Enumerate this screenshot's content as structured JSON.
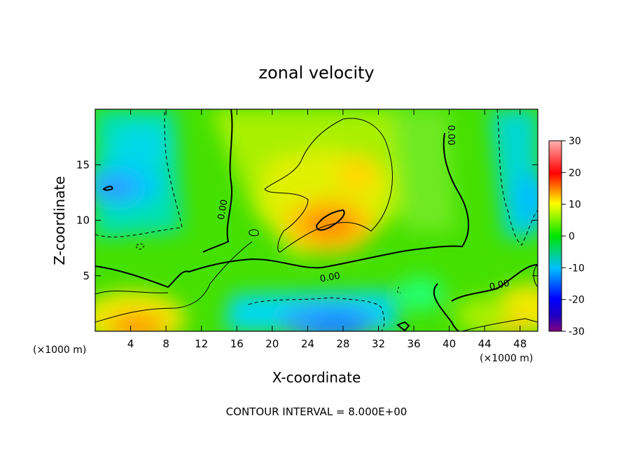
{
  "chart_data": {
    "type": "heatmap",
    "title": "zonal velocity",
    "xlabel": "X-coordinate",
    "ylabel": "Z-coordinate",
    "x_unit_left": "(×1000 m)",
    "x_unit_right": "(×1000 m)",
    "footer": "CONTOUR INTERVAL = 8.000E+00",
    "xlim": [
      0,
      50
    ],
    "ylim": [
      0,
      20
    ],
    "x_ticks": [
      4,
      8,
      12,
      16,
      20,
      24,
      28,
      32,
      36,
      40,
      44,
      48
    ],
    "y_ticks": [
      5,
      10,
      15
    ],
    "colorbar": {
      "range": [
        -30,
        30
      ],
      "ticks": [
        30,
        20,
        10,
        0,
        -10,
        -20,
        -30
      ],
      "colors": [
        "#800080",
        "#0000ff",
        "#00bfff",
        "#00ff00",
        "#ffff00",
        "#ff0000",
        "#ffb0b0"
      ]
    },
    "contour_interval": 8.0,
    "contour_labels": [
      "0.00",
      "0.00",
      "0.00",
      "0.00"
    ],
    "features": [
      {
        "x": 26.5,
        "z": 10,
        "value": 18,
        "kind": "max"
      },
      {
        "x": 29,
        "z": 14.5,
        "value": 10,
        "kind": "local max"
      },
      {
        "x": 5.5,
        "z": 0.6,
        "value": 12,
        "kind": "local max"
      },
      {
        "x": 45,
        "z": 0.6,
        "value": 10,
        "kind": "local max"
      },
      {
        "x": 49,
        "z": 2,
        "value": 10,
        "kind": "local max"
      },
      {
        "x": 2.5,
        "z": 12.8,
        "value": -12,
        "kind": "min"
      },
      {
        "x": 26,
        "z": 1,
        "value": -12,
        "kind": "min"
      },
      {
        "x": 49,
        "z": 12,
        "value": -10,
        "kind": "min"
      },
      {
        "x": 3,
        "z": 18,
        "value": -6,
        "kind": "local min"
      },
      {
        "x": 37,
        "z": 17,
        "value": -2,
        "kind": "local min"
      }
    ]
  }
}
